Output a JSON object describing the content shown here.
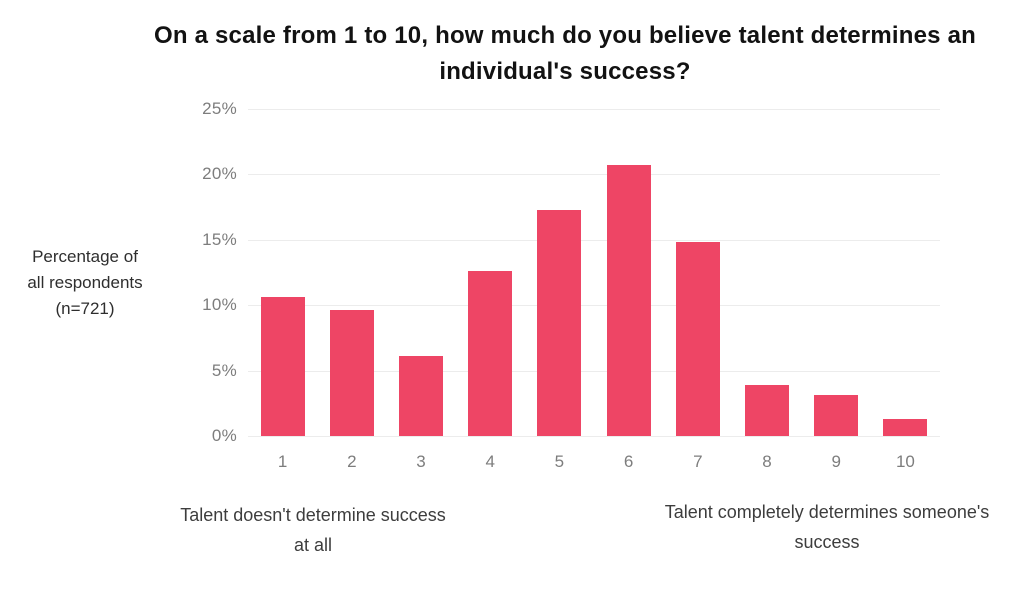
{
  "title": "On a scale from 1 to 10, how much do you believe talent determines an individual's success?",
  "y_axis_title": {
    "line1": "Percentage of",
    "line2": "all respondents",
    "line3": "(n=721)"
  },
  "annotations": {
    "left": "Talent doesn't determine success at all",
    "right": "Talent completely determines someone's success"
  },
  "chart_data": {
    "type": "bar",
    "title": "On a scale from 1 to 10, how much do you believe talent determines an individual's success?",
    "categories": [
      "1",
      "2",
      "3",
      "4",
      "5",
      "6",
      "7",
      "8",
      "9",
      "10"
    ],
    "values": [
      10.6,
      9.6,
      6.1,
      12.6,
      17.3,
      20.7,
      14.8,
      3.9,
      3.1,
      1.3
    ],
    "ylabel": "Percentage of all respondents (n=721)",
    "xlabel": "",
    "x_low_end_label": "Talent doesn't determine success at all",
    "x_high_end_label": "Talent completely determines someone's success",
    "ylim": [
      0,
      25
    ],
    "yticks": [
      0,
      5,
      10,
      15,
      20,
      25
    ],
    "ytick_labels": [
      "0%",
      "5%",
      "10%",
      "15%",
      "20%",
      "25%"
    ],
    "grid": true,
    "legend": false,
    "bar_color": "#EE4565"
  },
  "colors": {
    "bar": "#EE4565",
    "gridline": "#ececec",
    "axis_text": "#7d7d7d",
    "title_text": "#121212",
    "annotation_text": "#3d3d3d",
    "background": "#ffffff"
  }
}
